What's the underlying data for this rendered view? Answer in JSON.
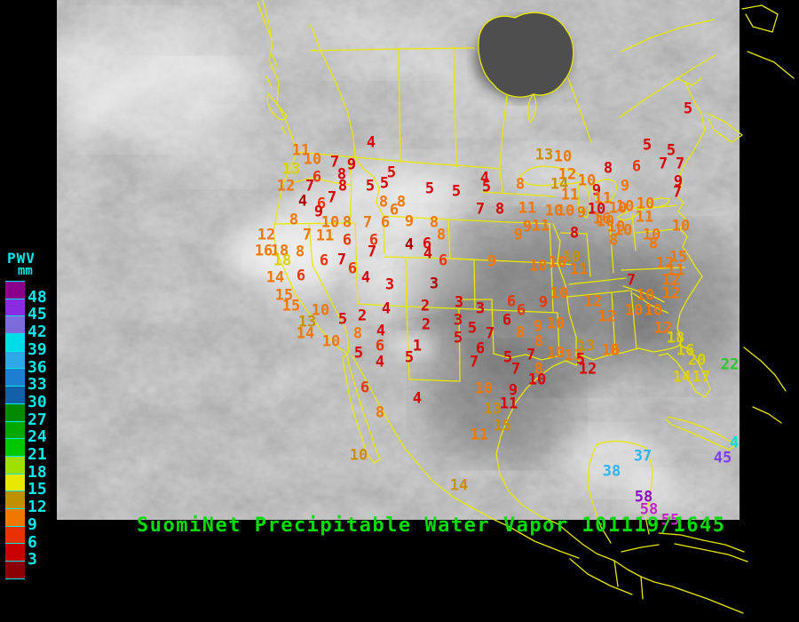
{
  "caption": {
    "text": "SuomiNet Precipitable Water Vapor 101119/1645",
    "color": "#00DC00"
  },
  "legend": {
    "title": "PWV",
    "unit": "mm",
    "label_color": "#00E8E8",
    "values": [
      "48",
      "45",
      "42",
      "39",
      "36",
      "33",
      "30",
      "27",
      "24",
      "21",
      "18",
      "15",
      "12",
      "9",
      "6",
      "3"
    ],
    "swatches": [
      "#8B008B",
      "#8A2BE2",
      "#7D6ADB",
      "#00DDE8",
      "#2FA8E8",
      "#1E7FD0",
      "#135FA8",
      "#008A00",
      "#00A800",
      "#00C800",
      "#A0E000",
      "#E8E800",
      "#C09000",
      "#F07800",
      "#E83000",
      "#C80000",
      "#8B0000"
    ]
  },
  "station_colors": {
    "darkred": "#A80000",
    "red": "#D80000",
    "orangered": "#E83800",
    "orange": "#F07800",
    "gold": "#C89000",
    "yellow": "#DCD000",
    "green": "#28C828",
    "cyan": "#30B4F0",
    "cyan2": "#00DCDC",
    "violet": "#8040E8",
    "purple": "#9008C0",
    "magenta": "#C428C4"
  },
  "stations": [
    [
      "4",
      418,
      162,
      "red"
    ],
    [
      "11",
      339,
      171,
      "orange"
    ],
    [
      "10",
      352,
      181,
      "orange"
    ],
    [
      "7",
      377,
      184,
      "red"
    ],
    [
      "9",
      396,
      187,
      "red"
    ],
    [
      "13",
      328,
      192,
      "yellow"
    ],
    [
      "6",
      357,
      201,
      "orangered"
    ],
    [
      "8",
      385,
      198,
      "red"
    ],
    [
      "5",
      441,
      196,
      "red"
    ],
    [
      "12",
      322,
      211,
      "orange"
    ],
    [
      "7",
      349,
      211,
      "red"
    ],
    [
      "8",
      386,
      211,
      "red"
    ],
    [
      "5",
      417,
      211,
      "red"
    ],
    [
      "5",
      433,
      208,
      "red"
    ],
    [
      "5",
      484,
      214,
      "red"
    ],
    [
      "4",
      341,
      228,
      "darkred"
    ],
    [
      "7",
      374,
      224,
      "red"
    ],
    [
      "6",
      362,
      231,
      "orangered"
    ],
    [
      "9",
      359,
      240,
      "red"
    ],
    [
      "8",
      432,
      229,
      "orange"
    ],
    [
      "8",
      452,
      229,
      "orange"
    ],
    [
      "6",
      444,
      238,
      "orange"
    ],
    [
      "8",
      331,
      249,
      "orange"
    ],
    [
      "10",
      372,
      252,
      "orange"
    ],
    [
      "8",
      391,
      252,
      "orange"
    ],
    [
      "7",
      414,
      252,
      "orange"
    ],
    [
      "6",
      434,
      252,
      "orange"
    ],
    [
      "9",
      461,
      251,
      "orange"
    ],
    [
      "8",
      489,
      252,
      "orange"
    ],
    [
      "12",
      300,
      266,
      "orange"
    ],
    [
      "7",
      346,
      266,
      "orange"
    ],
    [
      "11",
      366,
      267,
      "orange"
    ],
    [
      "6",
      391,
      272,
      "orangered"
    ],
    [
      "6",
      421,
      272,
      "orangered"
    ],
    [
      "4",
      461,
      277,
      "darkred"
    ],
    [
      "6",
      481,
      276,
      "red"
    ],
    [
      "8",
      497,
      266,
      "orange"
    ],
    [
      "16",
      297,
      284,
      "orange"
    ],
    [
      "18",
      315,
      284,
      "orange"
    ],
    [
      "8",
      338,
      285,
      "orange"
    ],
    [
      "7",
      419,
      285,
      "red"
    ],
    [
      "4",
      482,
      287,
      "red"
    ],
    [
      "18",
      318,
      295,
      "yellow"
    ],
    [
      "6",
      365,
      295,
      "orangered"
    ],
    [
      "7",
      385,
      294,
      "red"
    ],
    [
      "6",
      499,
      295,
      "orangered"
    ],
    [
      "13",
      613,
      176,
      "gold"
    ],
    [
      "10",
      634,
      178,
      "orange"
    ],
    [
      "4",
      546,
      202,
      "red"
    ],
    [
      "5",
      548,
      212,
      "red"
    ],
    [
      "5",
      514,
      217,
      "red"
    ],
    [
      "8",
      586,
      209,
      "orange"
    ],
    [
      "12",
      639,
      198,
      "orange"
    ],
    [
      "14",
      630,
      209,
      "gold"
    ],
    [
      "10",
      661,
      205,
      "orange"
    ],
    [
      "8",
      685,
      191,
      "red"
    ],
    [
      "9",
      704,
      211,
      "orange"
    ],
    [
      "11",
      642,
      221,
      "orange"
    ],
    [
      "9",
      672,
      216,
      "red"
    ],
    [
      "11",
      679,
      225,
      "orange"
    ],
    [
      "5",
      775,
      124,
      "red"
    ],
    [
      "5",
      729,
      165,
      "red"
    ],
    [
      "5",
      756,
      171,
      "red"
    ],
    [
      "7",
      747,
      186,
      "red"
    ],
    [
      "7",
      766,
      186,
      "red"
    ],
    [
      "6",
      717,
      189,
      "orangered"
    ],
    [
      "9",
      764,
      206,
      "red"
    ],
    [
      "7",
      763,
      218,
      "red"
    ],
    [
      "7",
      541,
      237,
      "red"
    ],
    [
      "8",
      563,
      237,
      "red"
    ],
    [
      "11",
      594,
      236,
      "orange"
    ],
    [
      "10",
      624,
      239,
      "orange"
    ],
    [
      "10",
      637,
      239,
      "orange"
    ],
    [
      "9",
      655,
      241,
      "orange"
    ],
    [
      "10",
      672,
      237,
      "red"
    ],
    [
      "16",
      678,
      248,
      "orange"
    ],
    [
      "10",
      696,
      236,
      "orange"
    ],
    [
      "10",
      682,
      251,
      "orange"
    ],
    [
      "10",
      702,
      261,
      "orange"
    ],
    [
      "9",
      594,
      257,
      "orange"
    ],
    [
      "11",
      609,
      256,
      "orange"
    ],
    [
      "9",
      584,
      266,
      "orange"
    ],
    [
      "8",
      647,
      264,
      "red"
    ],
    [
      "10",
      694,
      257,
      "orange"
    ],
    [
      "8",
      691,
      272,
      "orange"
    ],
    [
      "9",
      554,
      296,
      "orange"
    ],
    [
      "10",
      606,
      301,
      "orange"
    ],
    [
      "10",
      628,
      297,
      "orange"
    ],
    [
      "10",
      644,
      291,
      "gold"
    ],
    [
      "11",
      652,
      305,
      "orange"
    ],
    [
      "10",
      704,
      234,
      "orange"
    ],
    [
      "10",
      727,
      231,
      "orange"
    ],
    [
      "11",
      726,
      246,
      "orange"
    ],
    [
      "10",
      767,
      256,
      "orange"
    ],
    [
      "10",
      734,
      266,
      "orange"
    ],
    [
      "8",
      736,
      276,
      "orange"
    ],
    [
      "12",
      749,
      298,
      "orange"
    ],
    [
      "15",
      764,
      291,
      "orange"
    ],
    [
      "11",
      761,
      306,
      "orange"
    ],
    [
      "12",
      756,
      317,
      "orange"
    ],
    [
      "7",
      711,
      317,
      "red"
    ],
    [
      "10",
      727,
      334,
      "orange"
    ],
    [
      "12",
      756,
      332,
      "orange"
    ],
    [
      "10",
      714,
      351,
      "orange"
    ],
    [
      "10",
      736,
      351,
      "orange"
    ],
    [
      "12",
      747,
      371,
      "orange"
    ],
    [
      "18",
      761,
      382,
      "yellow"
    ],
    [
      "16",
      772,
      396,
      "yellow"
    ],
    [
      "20",
      785,
      407,
      "yellow"
    ],
    [
      "14",
      768,
      426,
      "yellow"
    ],
    [
      "17",
      790,
      426,
      "yellow"
    ],
    [
      "8",
      692,
      396,
      "orange"
    ],
    [
      "22",
      822,
      412,
      "green"
    ],
    [
      "14",
      310,
      314,
      "orange"
    ],
    [
      "6",
      339,
      312,
      "orangered"
    ],
    [
      "6",
      397,
      304,
      "orangered"
    ],
    [
      "4",
      412,
      314,
      "red"
    ],
    [
      "3",
      439,
      322,
      "red"
    ],
    [
      "3",
      489,
      321,
      "darkred"
    ],
    [
      "15",
      320,
      334,
      "orange"
    ],
    [
      "15",
      328,
      346,
      "orange"
    ],
    [
      "10",
      361,
      351,
      "orange"
    ],
    [
      "5",
      386,
      361,
      "red"
    ],
    [
      "2",
      408,
      357,
      "red"
    ],
    [
      "4",
      435,
      349,
      "red"
    ],
    [
      "2",
      479,
      346,
      "red"
    ],
    [
      "13",
      346,
      364,
      "gold"
    ],
    [
      "2",
      480,
      367,
      "red"
    ],
    [
      "14",
      344,
      377,
      "orange"
    ],
    [
      "8",
      403,
      377,
      "orange"
    ],
    [
      "4",
      429,
      374,
      "red"
    ],
    [
      "10",
      373,
      386,
      "orange"
    ],
    [
      "6",
      428,
      391,
      "orangered"
    ],
    [
      "1",
      470,
      391,
      "red"
    ],
    [
      "5",
      404,
      399,
      "red"
    ],
    [
      "4",
      428,
      409,
      "red"
    ],
    [
      "5",
      461,
      404,
      "red"
    ],
    [
      "6",
      411,
      438,
      "orangered"
    ],
    [
      "8",
      428,
      466,
      "orange"
    ],
    [
      "4",
      470,
      450,
      "red"
    ],
    [
      "10",
      404,
      514,
      "gold"
    ],
    [
      "14",
      517,
      548,
      "gold"
    ],
    [
      "3",
      517,
      342,
      "red"
    ],
    [
      "3",
      541,
      349,
      "red"
    ],
    [
      "6",
      576,
      341,
      "orangered"
    ],
    [
      "9",
      612,
      342,
      "orangered"
    ],
    [
      "10",
      630,
      332,
      "orange"
    ],
    [
      "12",
      668,
      341,
      "orange"
    ],
    [
      "12",
      684,
      358,
      "orange"
    ],
    [
      "3",
      516,
      362,
      "red"
    ],
    [
      "5",
      532,
      371,
      "red"
    ],
    [
      "6",
      571,
      362,
      "red"
    ],
    [
      "6",
      587,
      351,
      "orangered"
    ],
    [
      "8",
      586,
      376,
      "orange"
    ],
    [
      "9",
      606,
      369,
      "orange"
    ],
    [
      "10",
      626,
      366,
      "orange"
    ],
    [
      "5",
      516,
      382,
      "red"
    ],
    [
      "7",
      552,
      377,
      "red"
    ],
    [
      "8",
      607,
      386,
      "orange"
    ],
    [
      "13",
      660,
      391,
      "gold"
    ],
    [
      "16",
      688,
      396,
      "orange"
    ],
    [
      "6",
      541,
      394,
      "red"
    ],
    [
      "5",
      572,
      404,
      "red"
    ],
    [
      "7",
      598,
      401,
      "red"
    ],
    [
      "10",
      626,
      399,
      "orange"
    ],
    [
      "13",
      646,
      402,
      "orange"
    ],
    [
      "5",
      654,
      406,
      "red"
    ],
    [
      "12",
      662,
      417,
      "red"
    ],
    [
      "7",
      534,
      409,
      "red"
    ],
    [
      "7",
      581,
      417,
      "red"
    ],
    [
      "8",
      607,
      417,
      "orange"
    ],
    [
      "10",
      605,
      429,
      "red"
    ],
    [
      "10",
      545,
      439,
      "orange"
    ],
    [
      "9",
      578,
      441,
      "red"
    ],
    [
      "11",
      573,
      456,
      "red"
    ],
    [
      "13",
      555,
      462,
      "gold"
    ],
    [
      "15",
      566,
      481,
      "gold"
    ],
    [
      "11",
      540,
      491,
      "orange"
    ],
    [
      "37",
      724,
      515,
      "cyan"
    ],
    [
      "38",
      689,
      532,
      "cyan"
    ],
    [
      "4",
      827,
      500,
      "cyan2"
    ],
    [
      "45",
      814,
      517,
      "violet"
    ],
    [
      "58",
      725,
      561,
      "purple"
    ],
    [
      "58",
      731,
      575,
      "magenta"
    ],
    [
      "55",
      755,
      587,
      "magenta"
    ]
  ]
}
